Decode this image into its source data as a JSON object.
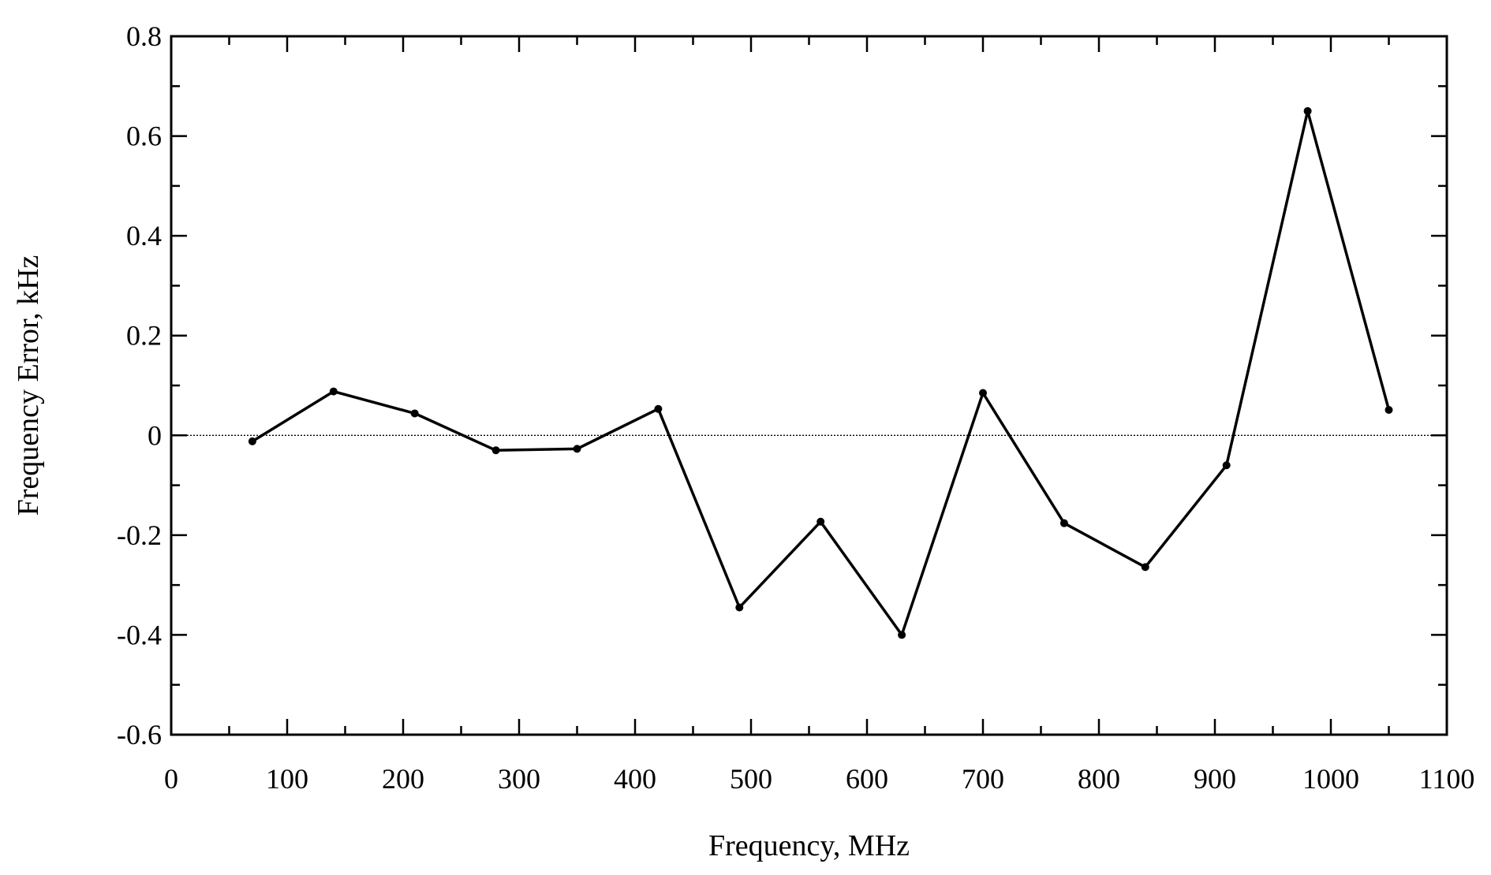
{
  "chart_data": {
    "type": "line",
    "xlabel": "Frequency, MHz",
    "ylabel": "Frequency Error, kHz",
    "xlim": [
      0,
      1100
    ],
    "ylim": [
      -0.6,
      0.8
    ],
    "xticks": [
      0,
      100,
      200,
      300,
      400,
      500,
      600,
      700,
      800,
      900,
      1000,
      1100
    ],
    "xtick_labels": [
      "0",
      "100",
      "200",
      "300",
      "400",
      "500",
      "600",
      "700",
      "800",
      "900",
      "1000",
      "1100"
    ],
    "yticks": [
      -0.6,
      -0.4,
      -0.2,
      0,
      0.2,
      0.4,
      0.6,
      0.8
    ],
    "ytick_labels": [
      "-0.6",
      "-0.4",
      "-0.2",
      "0",
      "0.2",
      "0.4",
      "0.6",
      "0.8"
    ],
    "x_minor_step": 50,
    "y_minor_step": 0.1,
    "grid": false,
    "reference_line": {
      "y": 0,
      "style": "dotted"
    },
    "series": [
      {
        "color": "#000000",
        "x": [
          70,
          140,
          210,
          280,
          350,
          420,
          490,
          560,
          630,
          700,
          770,
          840,
          910,
          980,
          1050
        ],
        "y": [
          -0.012,
          0.088,
          0.044,
          -0.03,
          -0.027,
          0.053,
          -0.345,
          -0.173,
          -0.4,
          0.085,
          -0.176,
          -0.264,
          -0.06,
          0.65,
          0.051
        ]
      }
    ]
  }
}
